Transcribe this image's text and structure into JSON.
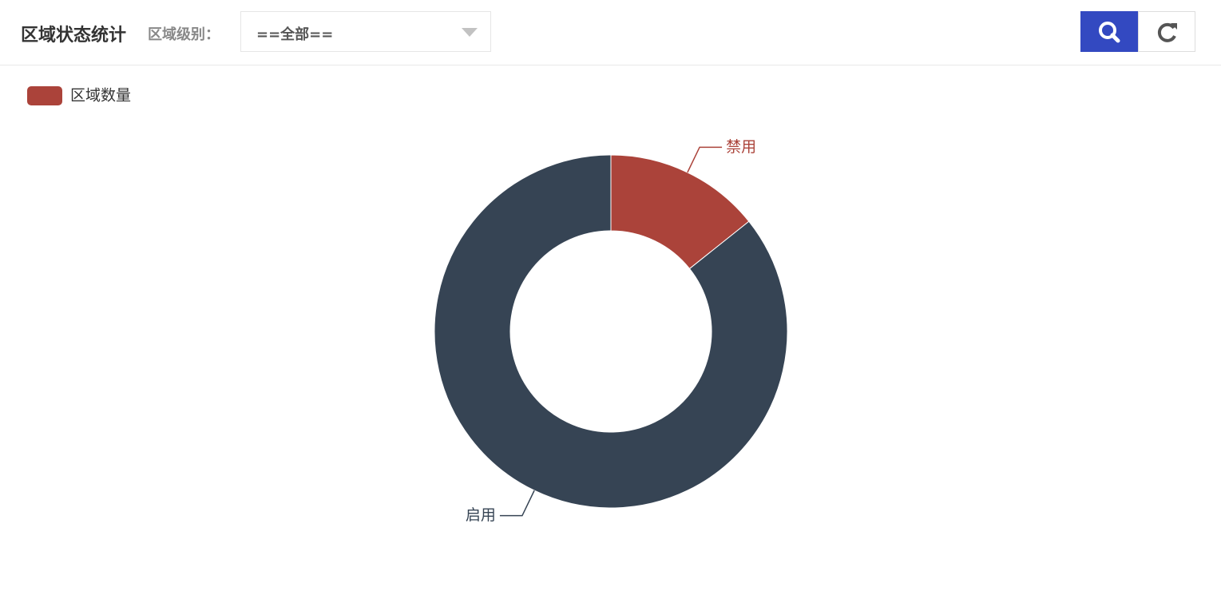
{
  "header": {
    "title": "区域状态统计",
    "filter_label": "区域级别：",
    "filter_value": "==全部=="
  },
  "chart_data": {
    "type": "pie",
    "legend": "区域数量",
    "legend_position": "top-left",
    "categories": [
      "禁用",
      "启用"
    ],
    "values": [
      1,
      6
    ],
    "colors": [
      "#ab433a",
      "#364454"
    ]
  }
}
